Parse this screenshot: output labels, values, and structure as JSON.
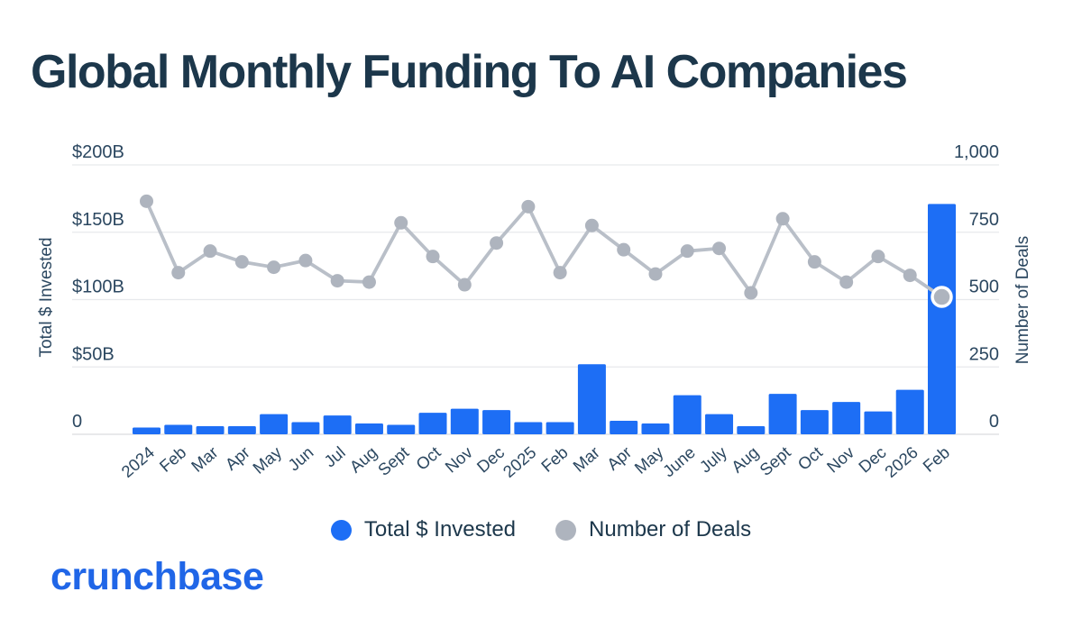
{
  "title": "Global Monthly Funding To AI Companies",
  "logo_text": "crunchbase",
  "legend": {
    "items": [
      {
        "label": "Total $ Invested",
        "color": "#1d6ef5"
      },
      {
        "label": "Number of Deals",
        "color": "#aeb4be"
      }
    ]
  },
  "colors": {
    "bar_blue": "#1d6ef5",
    "dot_gray": "#aeb4be",
    "line_gray": "#b9bfc8",
    "grid": "#e7e9ec",
    "baseline": "#d9dcdf",
    "title_navy": "#1c374b",
    "axis_text": "#2b4760",
    "logo_blue": "#2066e7"
  },
  "chart_data": {
    "type": "combo-bar-line",
    "title": "Global Monthly Funding To AI Companies",
    "grid": true,
    "legend_position": "bottom",
    "highlight_last_point": true,
    "categories": [
      "2024",
      "Feb",
      "Mar",
      "Apr",
      "May",
      "Jun",
      "Jul",
      "Aug",
      "Sept",
      "Oct",
      "Nov",
      "Dec",
      "2025",
      "Feb",
      "Mar",
      "Apr",
      "May",
      "June",
      "July",
      "Aug",
      "Sept",
      "Oct",
      "Nov",
      "Dec",
      "2026",
      "Feb"
    ],
    "series": [
      {
        "name": "Total $ Invested",
        "type": "bar",
        "axis": "left",
        "unit": "$ billions",
        "color": "#1d6ef5",
        "values": [
          5,
          7,
          6,
          6,
          15,
          9,
          14,
          8,
          7,
          16,
          19,
          18,
          9,
          9,
          52,
          10,
          8,
          29,
          15,
          6,
          30,
          18,
          24,
          17,
          33,
          171
        ]
      },
      {
        "name": "Number of Deals",
        "type": "line",
        "axis": "right",
        "unit": "deals",
        "color": "#aeb4be",
        "values": [
          865,
          600,
          680,
          640,
          620,
          645,
          570,
          565,
          785,
          660,
          555,
          710,
          845,
          600,
          775,
          685,
          595,
          680,
          690,
          525,
          800,
          640,
          565,
          660,
          590,
          510
        ]
      }
    ],
    "left_axis": {
      "title": "Total $ Invested",
      "min": 0,
      "max": 200,
      "tick_labels": [
        "$200B",
        "$150B",
        "$100B",
        "$50B",
        "0"
      ],
      "tick_values": [
        200,
        150,
        100,
        50,
        0
      ]
    },
    "right_axis": {
      "title": "Number of Deals",
      "min": 0,
      "max": 1000,
      "tick_labels": [
        "1,000",
        "750",
        "500",
        "250",
        "0"
      ],
      "tick_values": [
        1000,
        750,
        500,
        250,
        0
      ]
    }
  }
}
